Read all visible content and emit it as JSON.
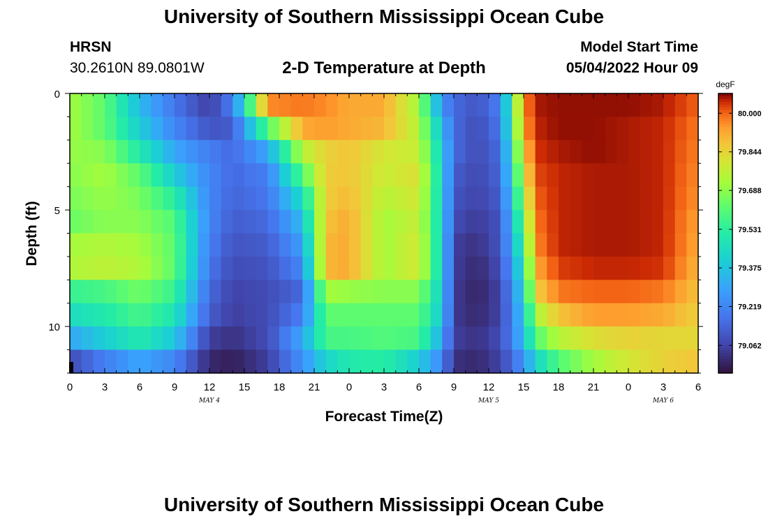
{
  "header": {
    "title": "University of Southern Mississippi Ocean Cube",
    "station": "HRSN",
    "coordinates": "30.2610N  89.0801W",
    "subtitle": "2-D Temperature at Depth",
    "model_start_label": "Model Start Time",
    "model_start_value": "05/04/2022 Hour 09"
  },
  "footer": {
    "title": "University of Southern Mississippi Ocean Cube"
  },
  "chart_data": {
    "type": "heatmap",
    "title": "2-D Temperature at Depth",
    "xlabel": "Forecast Time(Z)",
    "ylabel": "Depth (ft)",
    "x_tick_labels": [
      "0",
      "3",
      "6",
      "9",
      "12",
      "15",
      "18",
      "21",
      "0",
      "3",
      "6",
      "9",
      "12",
      "15",
      "18",
      "21",
      "0",
      "3",
      "6"
    ],
    "date_labels": [
      {
        "text": "MAY 4",
        "hour": 12
      },
      {
        "text": "MAY 5",
        "hour": 36
      },
      {
        "text": "MAY 6",
        "hour": 51
      }
    ],
    "x_range_hours": [
      0,
      54
    ],
    "y_tick_labels": [
      "0",
      "5",
      "10"
    ],
    "y_range_ft": [
      0,
      12
    ],
    "colorbar": {
      "unit": "degF",
      "min": 78.95,
      "max": 80.08,
      "tick_labels": [
        "80.000",
        "79.844",
        "79.688",
        "79.531",
        "79.375",
        "79.219",
        "79.062"
      ],
      "tick_values": [
        80.0,
        79.844,
        79.688,
        79.531,
        79.375,
        79.219,
        79.062
      ]
    },
    "depth_rows_ft": [
      0.5,
      1.5,
      2.5,
      3.5,
      4.5,
      5.5,
      6.5,
      7.5,
      8.5,
      9.5,
      10.5,
      11.5
    ],
    "key_times_hours": [
      0,
      3,
      6,
      9,
      12,
      14,
      17,
      20,
      22,
      24,
      27,
      30,
      32,
      33,
      35,
      37,
      39,
      40,
      42,
      45,
      48,
      51,
      54
    ],
    "key_values_by_depth": [
      [
        79.72,
        79.62,
        79.35,
        79.18,
        79.05,
        79.2,
        79.96,
        79.98,
        79.96,
        79.92,
        79.92,
        79.72,
        79.25,
        79.15,
        79.1,
        79.2,
        79.95,
        80.06,
        80.07,
        80.07,
        80.07,
        80.06,
        80.0
      ],
      [
        79.72,
        79.62,
        79.4,
        79.22,
        79.1,
        79.12,
        79.6,
        79.92,
        79.94,
        79.92,
        79.9,
        79.75,
        79.35,
        79.15,
        79.08,
        79.18,
        79.92,
        80.05,
        80.07,
        80.07,
        80.06,
        80.05,
        79.98
      ],
      [
        79.7,
        79.68,
        79.5,
        79.3,
        79.2,
        79.15,
        79.3,
        79.75,
        79.85,
        79.88,
        79.8,
        79.78,
        79.4,
        79.15,
        79.08,
        79.15,
        79.85,
        80.04,
        80.06,
        80.07,
        80.06,
        80.05,
        79.97
      ],
      [
        79.68,
        79.72,
        79.62,
        79.4,
        79.22,
        79.15,
        79.2,
        79.6,
        79.86,
        79.88,
        79.78,
        79.82,
        79.42,
        79.12,
        79.07,
        79.14,
        79.78,
        80.02,
        80.05,
        80.06,
        80.06,
        80.05,
        79.96
      ],
      [
        79.66,
        79.7,
        79.66,
        79.52,
        79.22,
        79.14,
        79.18,
        79.45,
        79.86,
        79.9,
        79.75,
        79.8,
        79.42,
        79.1,
        79.06,
        79.12,
        79.7,
        80.0,
        80.05,
        80.06,
        80.06,
        80.05,
        79.95
      ],
      [
        79.64,
        79.68,
        79.68,
        79.6,
        79.22,
        79.12,
        79.15,
        79.35,
        79.88,
        79.92,
        79.72,
        79.78,
        79.42,
        79.08,
        79.04,
        79.1,
        79.62,
        79.98,
        80.05,
        80.06,
        80.06,
        80.05,
        79.93
      ],
      [
        79.72,
        79.74,
        79.72,
        79.62,
        79.2,
        79.1,
        79.12,
        79.28,
        79.9,
        79.92,
        79.72,
        79.8,
        79.42,
        79.05,
        79.02,
        79.1,
        79.55,
        79.96,
        80.05,
        80.06,
        80.06,
        80.05,
        79.92
      ],
      [
        79.74,
        79.76,
        79.74,
        79.62,
        79.18,
        79.08,
        79.1,
        79.22,
        79.9,
        79.92,
        79.72,
        79.8,
        79.42,
        79.05,
        79.0,
        79.08,
        79.48,
        79.92,
        80.03,
        80.05,
        80.05,
        80.04,
        79.9
      ],
      [
        79.55,
        79.58,
        79.65,
        79.55,
        79.15,
        79.06,
        79.08,
        79.15,
        79.72,
        79.7,
        79.68,
        79.68,
        79.4,
        79.04,
        78.99,
        79.06,
        79.42,
        79.85,
        79.98,
        80.0,
        80.0,
        79.98,
        79.88
      ],
      [
        79.45,
        79.5,
        79.58,
        79.48,
        79.12,
        79.05,
        79.08,
        79.2,
        79.62,
        79.62,
        79.62,
        79.62,
        79.38,
        79.04,
        79.0,
        79.06,
        79.38,
        79.72,
        79.88,
        79.94,
        79.94,
        79.92,
        79.86
      ],
      [
        79.3,
        79.4,
        79.5,
        79.38,
        79.05,
        79.02,
        79.08,
        79.3,
        79.58,
        79.58,
        79.6,
        79.58,
        79.3,
        79.05,
        79.02,
        79.08,
        79.35,
        79.6,
        79.75,
        79.82,
        79.85,
        79.84,
        79.84
      ],
      [
        79.08,
        79.2,
        79.3,
        79.22,
        79.0,
        78.98,
        79.05,
        79.25,
        79.42,
        79.5,
        79.52,
        79.4,
        79.22,
        79.02,
        79.0,
        79.06,
        79.25,
        79.42,
        79.6,
        79.72,
        79.8,
        79.85,
        79.88
      ]
    ]
  }
}
